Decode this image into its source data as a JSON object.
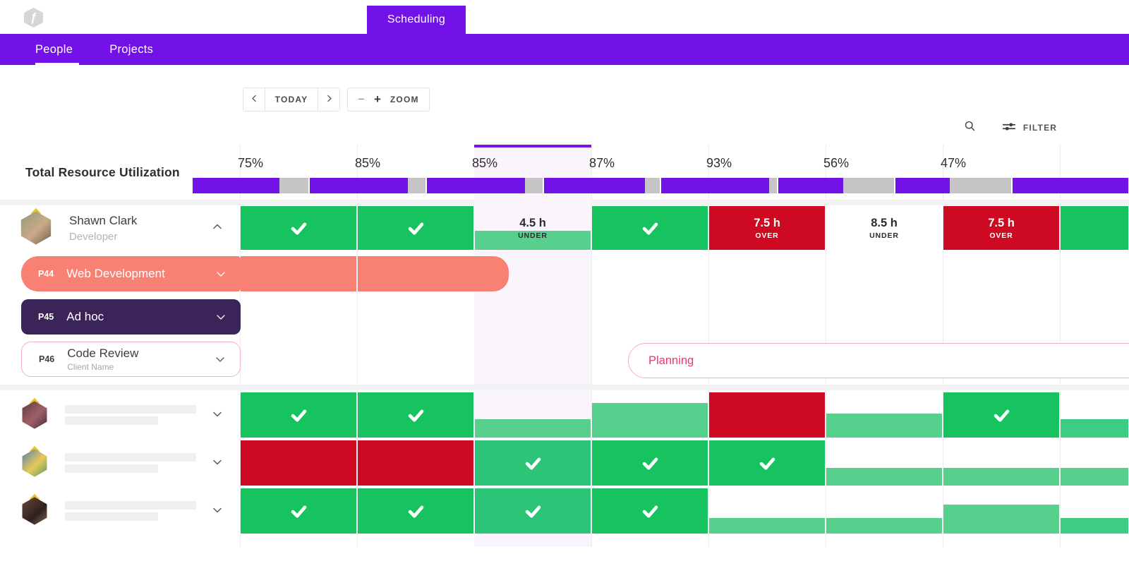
{
  "header": {
    "logo_glyph": "ƒ",
    "tab": "Scheduling"
  },
  "nav": {
    "items": [
      {
        "label": "People",
        "active": true
      },
      {
        "label": "Projects",
        "active": false
      }
    ]
  },
  "toolbar": {
    "today": "TODAY",
    "zoom_out": "−",
    "zoom_in": "+",
    "zoom": "ZOOM",
    "filter": "FILTER"
  },
  "utilization": {
    "label": "Total Resource Utilization",
    "columns": [
      {
        "percent": "75%",
        "fill": 75
      },
      {
        "percent": "85%",
        "fill": 85
      },
      {
        "percent": "85%",
        "fill": 85,
        "today": true
      },
      {
        "percent": "87%",
        "fill": 87
      },
      {
        "percent": "93%",
        "fill": 93
      },
      {
        "percent": "56%",
        "fill": 56
      },
      {
        "percent": "47%",
        "fill": 47
      },
      {
        "percent": "",
        "fill": 100
      }
    ]
  },
  "people": [
    {
      "name": "Shawn Clark",
      "role": "Developer",
      "expanded": true,
      "avatar": "a1",
      "cells": [
        {
          "t": "check"
        },
        {
          "t": "check"
        },
        {
          "t": "hours",
          "style": "under-today",
          "hours": "4.5 h",
          "status": "UNDER",
          "fill": 42,
          "today": true
        },
        {
          "t": "check"
        },
        {
          "t": "hours",
          "style": "over",
          "hours": "7.5 h",
          "status": "OVER"
        },
        {
          "t": "hours",
          "style": "under",
          "hours": "8.5 h",
          "status": "UNDER"
        },
        {
          "t": "hours",
          "style": "over",
          "hours": "7.5 h",
          "status": "OVER"
        },
        {
          "t": "full",
          "color": "green"
        }
      ]
    },
    {
      "placeholder": true,
      "expanded": false,
      "avatar": "a2",
      "cells": [
        {
          "t": "check"
        },
        {
          "t": "check"
        },
        {
          "t": "partial",
          "fill": 40,
          "today": true
        },
        {
          "t": "partial",
          "fill": 75
        },
        {
          "t": "full",
          "color": "red"
        },
        {
          "t": "partial",
          "fill": 52
        },
        {
          "t": "check"
        },
        {
          "t": "partial",
          "fill": 40,
          "color": "green-mid"
        }
      ]
    },
    {
      "placeholder": true,
      "expanded": false,
      "avatar": "a3",
      "cells": [
        {
          "t": "full",
          "color": "red"
        },
        {
          "t": "full",
          "color": "red"
        },
        {
          "t": "check",
          "today": true
        },
        {
          "t": "check"
        },
        {
          "t": "check"
        },
        {
          "t": "partial",
          "fill": 38
        },
        {
          "t": "partial",
          "fill": 38
        },
        {
          "t": "partial",
          "fill": 38
        }
      ]
    },
    {
      "placeholder": true,
      "expanded": false,
      "avatar": "a4",
      "cells": [
        {
          "t": "check"
        },
        {
          "t": "check"
        },
        {
          "t": "check",
          "today": true
        },
        {
          "t": "check"
        },
        {
          "t": "partial",
          "fill": 33
        },
        {
          "t": "partial",
          "fill": 33
        },
        {
          "t": "partial",
          "fill": 62
        },
        {
          "t": "partial",
          "fill": 33,
          "color": "green-mid"
        }
      ]
    }
  ],
  "projects": [
    {
      "code": "P44",
      "name": "Web Development",
      "variant": "salmon"
    },
    {
      "code": "P45",
      "name": "Ad hoc",
      "variant": "dark"
    },
    {
      "code": "P46",
      "name": "Code Review",
      "client": "Client Name",
      "variant": "outline"
    }
  ],
  "planning": {
    "label": "Planning"
  },
  "colors": {
    "purple": "#7312e8",
    "bar_gray": "#c6c4c6",
    "green": "#16c35e",
    "green_light": "#57d08e",
    "green_mid": "#3ecb83",
    "green_today": "#2cc577",
    "red": "#ce0a23",
    "salmon": "#f98174",
    "dark_purple": "#3a2458",
    "pink": "#f43563",
    "pink_border": "#f6aec6",
    "today_bg": "#faf4fd"
  }
}
